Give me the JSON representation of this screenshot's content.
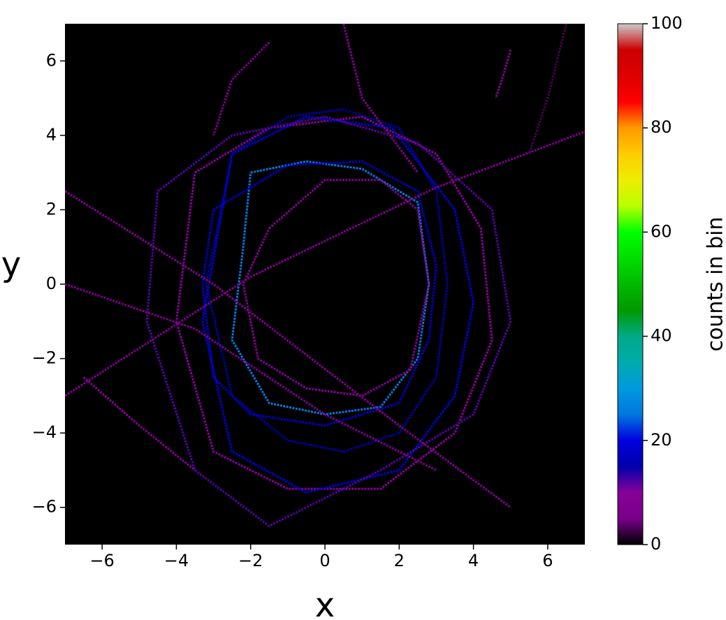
{
  "chart_data": {
    "type": "hist2d",
    "xlabel": "x",
    "ylabel": "y",
    "xlim": [
      -7,
      7
    ],
    "ylim": [
      -7,
      7
    ],
    "xticks": [
      {
        "value": -6,
        "label": "−6"
      },
      {
        "value": -4,
        "label": "−4"
      },
      {
        "value": -2,
        "label": "−2"
      },
      0,
      2,
      4,
      6
    ],
    "yticks": [
      {
        "value": -6,
        "label": "−6"
      },
      {
        "value": -4,
        "label": "−4"
      },
      {
        "value": -2,
        "label": "−2"
      },
      0,
      2,
      4,
      6
    ],
    "background": "#000000",
    "colormap": "nipy_spectral",
    "colorbar": {
      "label": "counts in bin",
      "clim": [
        0,
        100
      ],
      "ticks": [
        0,
        20,
        40,
        60,
        80,
        100
      ]
    },
    "tracks": [
      {
        "x": [
          -2.5,
          -1,
          0.5,
          2,
          3,
          3.3,
          3,
          2,
          0.5,
          -1,
          -2.5,
          -3.2,
          -2.5
        ],
        "y": [
          3.5,
          4.5,
          4.7,
          4.2,
          2.5,
          0,
          -2.5,
          -4,
          -4.5,
          -4.2,
          -3,
          0,
          3.5
        ],
        "count": 15
      },
      {
        "x": [
          -2,
          -0.5,
          1,
          2.5,
          2.8,
          2.5,
          1.5,
          0,
          -1.5,
          -2.5,
          -2.2,
          -2
        ],
        "y": [
          3,
          3.3,
          3.1,
          2.2,
          0,
          -2,
          -3.3,
          -3.5,
          -3.2,
          -1.5,
          1,
          3
        ],
        "count": 25
      },
      {
        "x": [
          -3.5,
          -1.5,
          1,
          3,
          4.2,
          4.5,
          3.5,
          1.5,
          -1,
          -3,
          -4,
          -3.5
        ],
        "y": [
          3,
          4.2,
          4.5,
          3.5,
          1.5,
          -1.5,
          -4,
          -5.5,
          -5.5,
          -4.5,
          -1,
          3
        ],
        "count": 10
      },
      {
        "x": [
          -3,
          -1,
          1,
          2.5,
          3,
          2.8,
          2,
          0,
          -2,
          -3,
          -3.3,
          -3
        ],
        "y": [
          2,
          3.2,
          3.3,
          2.5,
          0.5,
          -1.5,
          -3.2,
          -3.8,
          -3.5,
          -2.5,
          0,
          2
        ],
        "count": 18
      },
      {
        "x": [
          -1.5,
          0,
          1.5,
          2.5,
          2.8,
          2.3,
          1,
          -0.5,
          -1.8,
          -2.2,
          -1.5
        ],
        "y": [
          1.5,
          2.8,
          2.8,
          2,
          0,
          -2.3,
          -3,
          -2.8,
          -2,
          0,
          1.5
        ],
        "count": 8
      },
      {
        "x": [
          -2.5,
          -0.5,
          1.8,
          3.5,
          4,
          3.5,
          2,
          -0.5,
          -2.5,
          -3.3,
          -2.5
        ],
        "y": [
          3.5,
          4.5,
          4.2,
          2,
          -0.5,
          -3,
          -5,
          -5.6,
          -4.5,
          -1,
          3.5
        ],
        "count": 20
      },
      {
        "x": [
          -4.5,
          -2.5,
          0,
          2.5,
          4.5,
          5,
          4,
          1.5,
          -1.5,
          -3.5,
          -4.8,
          -4.5
        ],
        "y": [
          2.5,
          4,
          4.5,
          3.8,
          2,
          -1,
          -3.5,
          -5,
          -6.5,
          -5,
          -1,
          2.5
        ],
        "count": 12
      },
      {
        "x": [
          -7,
          -3,
          2,
          5
        ],
        "y": [
          2.5,
          0,
          -3.8,
          -6
        ],
        "count": 7
      },
      {
        "x": [
          -7,
          -3.5,
          0,
          3
        ],
        "y": [
          0,
          -1.2,
          -3.5,
          -5
        ],
        "count": 6
      },
      {
        "x": [
          -7,
          -2,
          3,
          7
        ],
        "y": [
          -3,
          0.2,
          2.6,
          4.1
        ],
        "count": 6
      },
      {
        "x": [
          -1.5,
          -2.5,
          -3
        ],
        "y": [
          6.5,
          5.5,
          4
        ],
        "count": 5
      },
      {
        "x": [
          0.5,
          1,
          2.5
        ],
        "y": [
          7,
          5,
          3
        ],
        "count": 7
      },
      {
        "x": [
          5,
          4.8,
          4.6
        ],
        "y": [
          6.3,
          5.6,
          5
        ],
        "count": 8
      },
      {
        "x": [
          6.5,
          6,
          5.5
        ],
        "y": [
          7,
          5,
          3.5
        ],
        "count": 3
      },
      {
        "x": [
          -6.5,
          -5,
          -3.5
        ],
        "y": [
          -2.5,
          -3.8,
          -5
        ],
        "count": 9
      }
    ]
  }
}
